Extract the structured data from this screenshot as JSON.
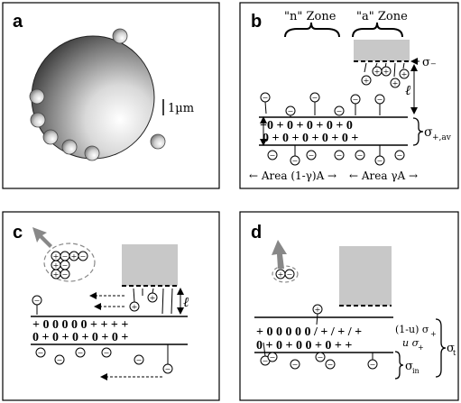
{
  "panel_a": {
    "letter": "a",
    "scale_label": "1µm"
  },
  "panel_b": {
    "letter": "b",
    "zone_n": "\"n\" Zone",
    "zone_a": "\"a\" Zone",
    "sigma_minus": "σ₋",
    "ell": "ℓ",
    "sigma_av": "σ",
    "sigma_av_sub": "+,av",
    "row1": "+0 + 0 + 0 + 0 + 0",
    "row2": "0 + 0 + 0 + 0 + 0 +",
    "area_left": "← Area (1-γ)A →",
    "area_right": "← Area γA →"
  },
  "panel_c": {
    "letter": "c",
    "ell": "ℓ",
    "row1": "+ 0 0 0 0 0 + + + +",
    "row2": "0 + 0 + 0 + 0 + 0 +"
  },
  "panel_d": {
    "letter": "d",
    "row1": "+ 0 0 0 0 0 / + / + / +",
    "row2": "0 + 0 + 0 0 + 0 + +",
    "label_u1": "(1-u) σ",
    "label_u1_sub": "+",
    "label_u2": "u σ",
    "label_u2_sub": "+",
    "label_in": "σ",
    "label_in_sub": "in",
    "label_t": "σ",
    "label_t_sub": "t"
  }
}
